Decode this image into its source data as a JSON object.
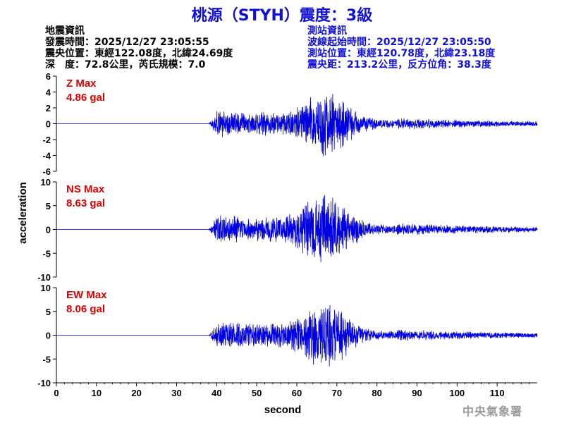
{
  "header": {
    "title": "桃源（STYH）震度：3級"
  },
  "quake_info": {
    "heading": "地震資訊",
    "time": "發震時間：2025/12/27 23:05:55",
    "location": "震央位置：東經122.08度，北緯24.69度",
    "depth_magnitude": "深　度：72.8公里，芮氏規模：7.0"
  },
  "station_info": {
    "heading": "測站資訊",
    "wave_start": "波線起始時間：2025/12/27 23:05:50",
    "location": "測站位置：東經120.78度，北緯23.18度",
    "distance_azimuth": "震央距：213.2公里，反方位角：38.3度"
  },
  "footer": {
    "agency": "中央氣象署"
  },
  "colors": {
    "title": "#1010d8",
    "trace": "#0000e0",
    "max_label": "#e00000",
    "footer": "#9a9a9a"
  },
  "chart_data": {
    "type": "line",
    "xlabel": "second",
    "ylabel": "acceleration",
    "xlim": [
      0,
      120
    ],
    "x_ticks": [
      0,
      10,
      20,
      30,
      40,
      50,
      60,
      70,
      80,
      90,
      100,
      110
    ],
    "arrival_time": 38,
    "peak_time": 67.5,
    "series": [
      {
        "name": "Z",
        "max_label": "Z Max",
        "max_value": "4.86 gal",
        "peak": 4.86,
        "ylim": [
          -6,
          6
        ],
        "y_ticks": [
          6,
          4,
          2,
          0,
          -2,
          -4,
          -6
        ]
      },
      {
        "name": "NS",
        "max_label": "NS Max",
        "max_value": "8.63 gal",
        "peak": 8.63,
        "ylim": [
          -10,
          10
        ],
        "y_ticks": [
          10,
          5,
          0,
          -5,
          -10
        ]
      },
      {
        "name": "EW",
        "max_label": "EW Max",
        "max_value": "8.06 gal",
        "peak": 8.06,
        "ylim": [
          -10,
          10
        ],
        "y_ticks": [
          10,
          5,
          0,
          -5,
          -10
        ]
      }
    ]
  }
}
